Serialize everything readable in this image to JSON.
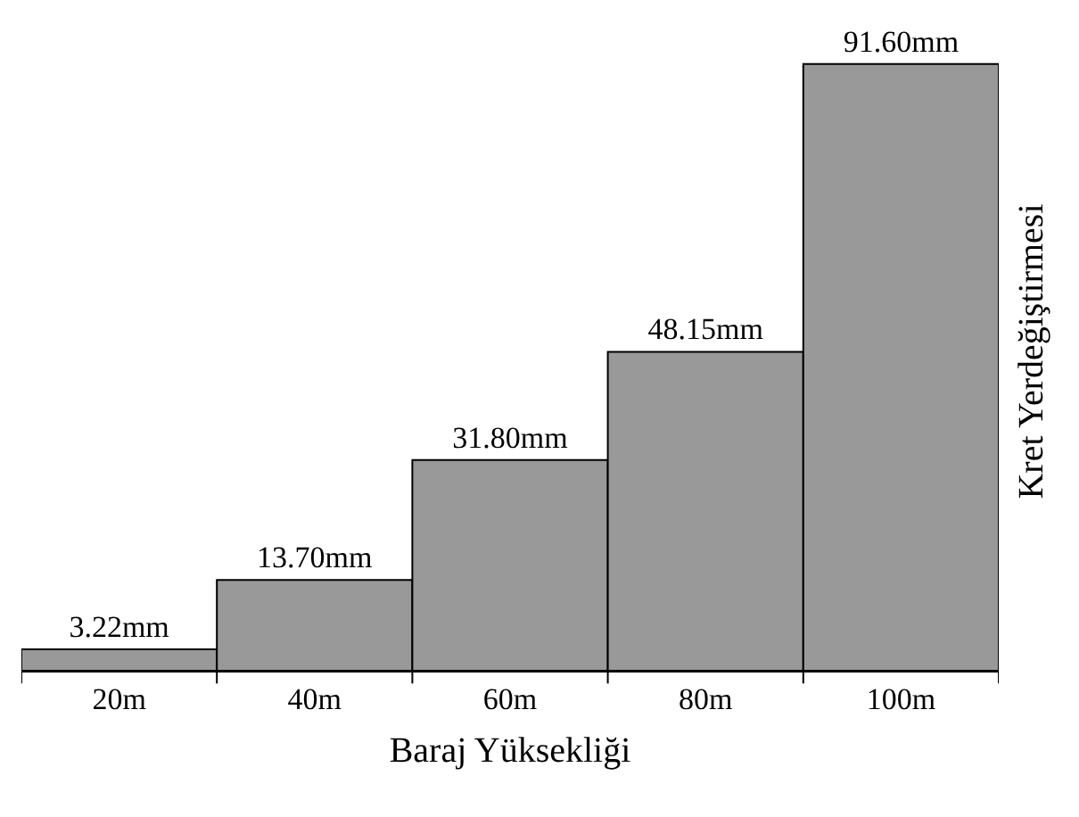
{
  "chart_data": {
    "type": "bar",
    "xlabel": "Baraj Yüksekliği",
    "ylabel": "Kret Yerdeğiştirmesi",
    "categories": [
      "20m",
      "40m",
      "60m",
      "80m",
      "100m"
    ],
    "values": [
      3.22,
      13.7,
      31.8,
      48.15,
      91.6
    ],
    "value_labels": [
      "3.22mm",
      "13.70mm",
      "31.80mm",
      "48.15mm",
      "91.60mm"
    ],
    "color": "#999999",
    "tick_labels": "x",
    "grid": false,
    "legend": false
  }
}
